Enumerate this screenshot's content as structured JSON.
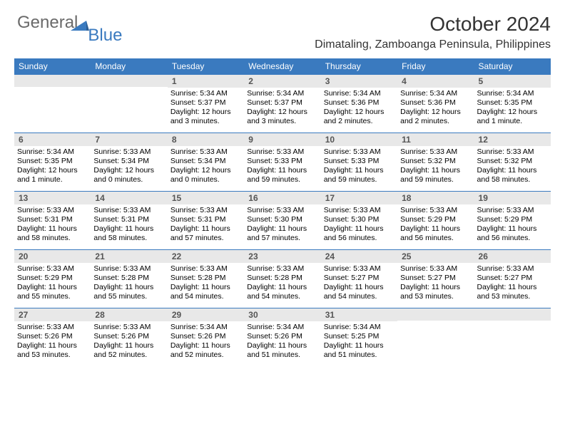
{
  "logo": {
    "general": "General",
    "blue": "Blue"
  },
  "header": {
    "title": "October 2024",
    "location": "Dimataling, Zamboanga Peninsula, Philippines"
  },
  "colors": {
    "header_bar": "#3a7abf",
    "daynum_bg": "#e8e8e8",
    "text": "#000000"
  },
  "dow": [
    "Sunday",
    "Monday",
    "Tuesday",
    "Wednesday",
    "Thursday",
    "Friday",
    "Saturday"
  ],
  "weeks": [
    [
      null,
      null,
      {
        "n": "1",
        "sr": "5:34 AM",
        "ss": "5:37 PM",
        "dl": "12 hours and 3 minutes."
      },
      {
        "n": "2",
        "sr": "5:34 AM",
        "ss": "5:37 PM",
        "dl": "12 hours and 3 minutes."
      },
      {
        "n": "3",
        "sr": "5:34 AM",
        "ss": "5:36 PM",
        "dl": "12 hours and 2 minutes."
      },
      {
        "n": "4",
        "sr": "5:34 AM",
        "ss": "5:36 PM",
        "dl": "12 hours and 2 minutes."
      },
      {
        "n": "5",
        "sr": "5:34 AM",
        "ss": "5:35 PM",
        "dl": "12 hours and 1 minute."
      }
    ],
    [
      {
        "n": "6",
        "sr": "5:34 AM",
        "ss": "5:35 PM",
        "dl": "12 hours and 1 minute."
      },
      {
        "n": "7",
        "sr": "5:33 AM",
        "ss": "5:34 PM",
        "dl": "12 hours and 0 minutes."
      },
      {
        "n": "8",
        "sr": "5:33 AM",
        "ss": "5:34 PM",
        "dl": "12 hours and 0 minutes."
      },
      {
        "n": "9",
        "sr": "5:33 AM",
        "ss": "5:33 PM",
        "dl": "11 hours and 59 minutes."
      },
      {
        "n": "10",
        "sr": "5:33 AM",
        "ss": "5:33 PM",
        "dl": "11 hours and 59 minutes."
      },
      {
        "n": "11",
        "sr": "5:33 AM",
        "ss": "5:32 PM",
        "dl": "11 hours and 59 minutes."
      },
      {
        "n": "12",
        "sr": "5:33 AM",
        "ss": "5:32 PM",
        "dl": "11 hours and 58 minutes."
      }
    ],
    [
      {
        "n": "13",
        "sr": "5:33 AM",
        "ss": "5:31 PM",
        "dl": "11 hours and 58 minutes."
      },
      {
        "n": "14",
        "sr": "5:33 AM",
        "ss": "5:31 PM",
        "dl": "11 hours and 58 minutes."
      },
      {
        "n": "15",
        "sr": "5:33 AM",
        "ss": "5:31 PM",
        "dl": "11 hours and 57 minutes."
      },
      {
        "n": "16",
        "sr": "5:33 AM",
        "ss": "5:30 PM",
        "dl": "11 hours and 57 minutes."
      },
      {
        "n": "17",
        "sr": "5:33 AM",
        "ss": "5:30 PM",
        "dl": "11 hours and 56 minutes."
      },
      {
        "n": "18",
        "sr": "5:33 AM",
        "ss": "5:29 PM",
        "dl": "11 hours and 56 minutes."
      },
      {
        "n": "19",
        "sr": "5:33 AM",
        "ss": "5:29 PM",
        "dl": "11 hours and 56 minutes."
      }
    ],
    [
      {
        "n": "20",
        "sr": "5:33 AM",
        "ss": "5:29 PM",
        "dl": "11 hours and 55 minutes."
      },
      {
        "n": "21",
        "sr": "5:33 AM",
        "ss": "5:28 PM",
        "dl": "11 hours and 55 minutes."
      },
      {
        "n": "22",
        "sr": "5:33 AM",
        "ss": "5:28 PM",
        "dl": "11 hours and 54 minutes."
      },
      {
        "n": "23",
        "sr": "5:33 AM",
        "ss": "5:28 PM",
        "dl": "11 hours and 54 minutes."
      },
      {
        "n": "24",
        "sr": "5:33 AM",
        "ss": "5:27 PM",
        "dl": "11 hours and 54 minutes."
      },
      {
        "n": "25",
        "sr": "5:33 AM",
        "ss": "5:27 PM",
        "dl": "11 hours and 53 minutes."
      },
      {
        "n": "26",
        "sr": "5:33 AM",
        "ss": "5:27 PM",
        "dl": "11 hours and 53 minutes."
      }
    ],
    [
      {
        "n": "27",
        "sr": "5:33 AM",
        "ss": "5:26 PM",
        "dl": "11 hours and 53 minutes."
      },
      {
        "n": "28",
        "sr": "5:33 AM",
        "ss": "5:26 PM",
        "dl": "11 hours and 52 minutes."
      },
      {
        "n": "29",
        "sr": "5:34 AM",
        "ss": "5:26 PM",
        "dl": "11 hours and 52 minutes."
      },
      {
        "n": "30",
        "sr": "5:34 AM",
        "ss": "5:26 PM",
        "dl": "11 hours and 51 minutes."
      },
      {
        "n": "31",
        "sr": "5:34 AM",
        "ss": "5:25 PM",
        "dl": "11 hours and 51 minutes."
      },
      null,
      null
    ]
  ]
}
